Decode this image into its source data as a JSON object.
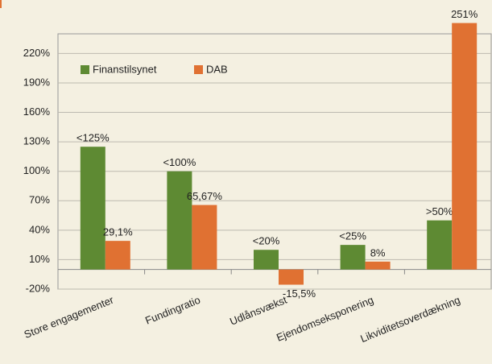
{
  "chart_data": {
    "type": "bar",
    "categories": [
      "Store engagementer",
      "Fundingratio",
      "Udlånsvækst",
      "Ejendomseksponering",
      "Likviditetsoverdækning"
    ],
    "series": [
      {
        "name": "Finanstilsynet",
        "color": "#5e8a33",
        "values": [
          125,
          100,
          20,
          25,
          50
        ],
        "value_labels": [
          "<125%",
          "<100%",
          "<20%",
          "<25%",
          ">50%"
        ]
      },
      {
        "name": "DAB",
        "color": "#e07132",
        "values": [
          29.1,
          65.67,
          -15.5,
          8,
          251
        ],
        "value_labels": [
          "29,1%",
          "65,67%",
          "-15,5%",
          "8%",
          "251%"
        ]
      }
    ],
    "ylim": [
      -20,
      240
    ],
    "yticks": [
      {
        "value": -20,
        "label": "-20%"
      },
      {
        "value": 10,
        "label": "10%"
      },
      {
        "value": 40,
        "label": "40%"
      },
      {
        "value": 70,
        "label": "70%"
      },
      {
        "value": 100,
        "label": "100%"
      },
      {
        "value": 130,
        "label": "130%"
      },
      {
        "value": 160,
        "label": "160%"
      },
      {
        "value": 190,
        "label": "190%"
      },
      {
        "value": 220,
        "label": "220%"
      }
    ],
    "grid": true,
    "legend": "top-left"
  }
}
